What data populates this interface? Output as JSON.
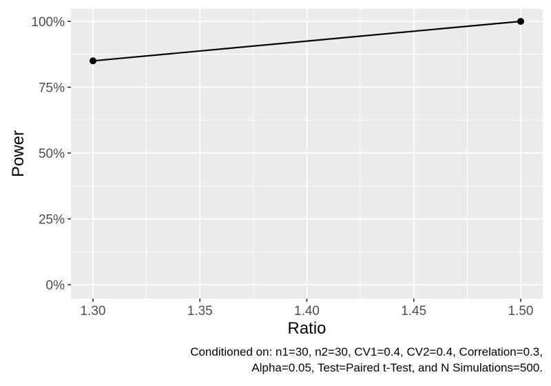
{
  "chart_data": {
    "type": "line",
    "title": "",
    "xlabel": "Ratio",
    "ylabel": "Power",
    "x": [
      1.3,
      1.5
    ],
    "series": [
      {
        "name": "Power",
        "values": [
          0.85,
          1.0
        ]
      }
    ],
    "x_domain": [
      1.3,
      1.5
    ],
    "y_domain": [
      0.0,
      1.0
    ],
    "x_ticks": {
      "values": [
        1.3,
        1.35,
        1.4,
        1.45,
        1.5
      ],
      "labels": [
        "1.30",
        "1.35",
        "1.40",
        "1.45",
        "1.50"
      ]
    },
    "y_ticks": {
      "values": [
        0.0,
        0.25,
        0.5,
        0.75,
        1.0
      ],
      "labels": [
        "0%",
        "25%",
        "50%",
        "75%",
        "100%"
      ]
    },
    "grid": "major-and-minor",
    "legend": "none",
    "caption": {
      "line1": "Conditioned on: n1=30, n2=30, CV1=0.4, CV2=0.4, Correlation=0.3,",
      "line2": "Alpha=0.05, Test=Paired t-Test, and N Simulations=500."
    },
    "colors": {
      "panel_background": "#EBEBEB",
      "gridline": "#FFFFFF",
      "line": "#000000",
      "point": "#000000",
      "tick_label": "#4D4D4D",
      "tick_mark": "#333333",
      "axis_title": "#000000",
      "caption_text": "#000000",
      "figure_background": "#FFFFFF"
    }
  }
}
